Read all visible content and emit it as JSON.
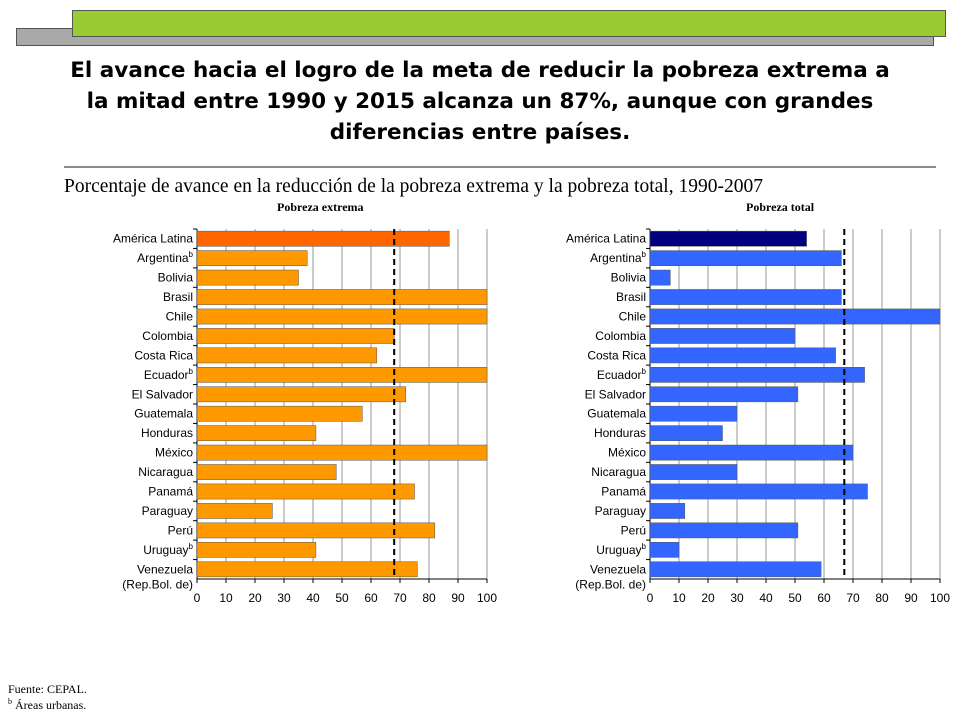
{
  "headline": "El avance hacia el logro de la meta de reducir la pobreza extrema a la mitad entre 1990 y 2015 alcanza un 87%, aunque con grandes diferencias entre países.",
  "subtitle": "Porcentaje de avance en la reducción de la pobreza extrema y la pobreza total, 1990-2007",
  "footnotes": {
    "source": "Fuente: CEPAL.",
    "note_marker": "b",
    "note_text": "Áreas urbanas."
  },
  "colors": {
    "extrema_bar": "#ff9900",
    "extrema_highlight": "#ff6600",
    "total_bar": "#3366ff",
    "total_highlight": "#000080",
    "banner_green": "#99cc33",
    "banner_gray": "#a9a9a9"
  },
  "chart_data": [
    {
      "type": "bar",
      "orientation": "horizontal",
      "title": "Pobreza extrema",
      "categories": [
        {
          "label": "América Latina"
        },
        {
          "label": "Argentina",
          "sup": "b"
        },
        {
          "label": "Bolivia"
        },
        {
          "label": "Brasil"
        },
        {
          "label": "Chile"
        },
        {
          "label": "Colombia"
        },
        {
          "label": "Costa Rica"
        },
        {
          "label": "Ecuador",
          "sup": "b"
        },
        {
          "label": "El Salvador"
        },
        {
          "label": "Guatemala"
        },
        {
          "label": "Honduras"
        },
        {
          "label": "México"
        },
        {
          "label": "Nicaragua"
        },
        {
          "label": "Panamá"
        },
        {
          "label": "Paraguay"
        },
        {
          "label": "Perú"
        },
        {
          "label": "Uruguay",
          "sup": "b"
        },
        {
          "label": "Venezuela",
          "label2": "(Rep.Bol. de)"
        }
      ],
      "values": [
        87,
        38,
        35,
        100,
        100,
        68,
        62,
        100,
        72,
        57,
        41,
        100,
        48,
        75,
        26,
        82,
        41,
        76
      ],
      "highlight_index": 0,
      "reference_line": 68,
      "xlim": [
        0,
        100
      ],
      "xticks": [
        0,
        10,
        20,
        30,
        40,
        50,
        60,
        70,
        80,
        90,
        100
      ],
      "grid": "vertical"
    },
    {
      "type": "bar",
      "orientation": "horizontal",
      "title": "Pobreza total",
      "categories": [
        {
          "label": "América Latina"
        },
        {
          "label": "Argentina",
          "sup": "b"
        },
        {
          "label": "Bolivia"
        },
        {
          "label": "Brasil"
        },
        {
          "label": "Chile"
        },
        {
          "label": "Colombia"
        },
        {
          "label": "Costa Rica"
        },
        {
          "label": "Ecuador",
          "sup": "b"
        },
        {
          "label": "El Salvador"
        },
        {
          "label": "Guatemala"
        },
        {
          "label": "Honduras"
        },
        {
          "label": "México"
        },
        {
          "label": "Nicaragua"
        },
        {
          "label": "Panamá"
        },
        {
          "label": "Paraguay"
        },
        {
          "label": "Perú"
        },
        {
          "label": "Uruguay",
          "sup": "b"
        },
        {
          "label": "Venezuela",
          "label2": "(Rep.Bol. de)"
        }
      ],
      "values": [
        54,
        66,
        7,
        66,
        100,
        50,
        64,
        74,
        51,
        30,
        25,
        70,
        30,
        75,
        12,
        51,
        10,
        59
      ],
      "highlight_index": 0,
      "reference_line": 67,
      "xlim": [
        0,
        100
      ],
      "xticks": [
        0,
        10,
        20,
        30,
        40,
        50,
        60,
        70,
        80,
        90,
        100
      ],
      "grid": "vertical"
    }
  ]
}
